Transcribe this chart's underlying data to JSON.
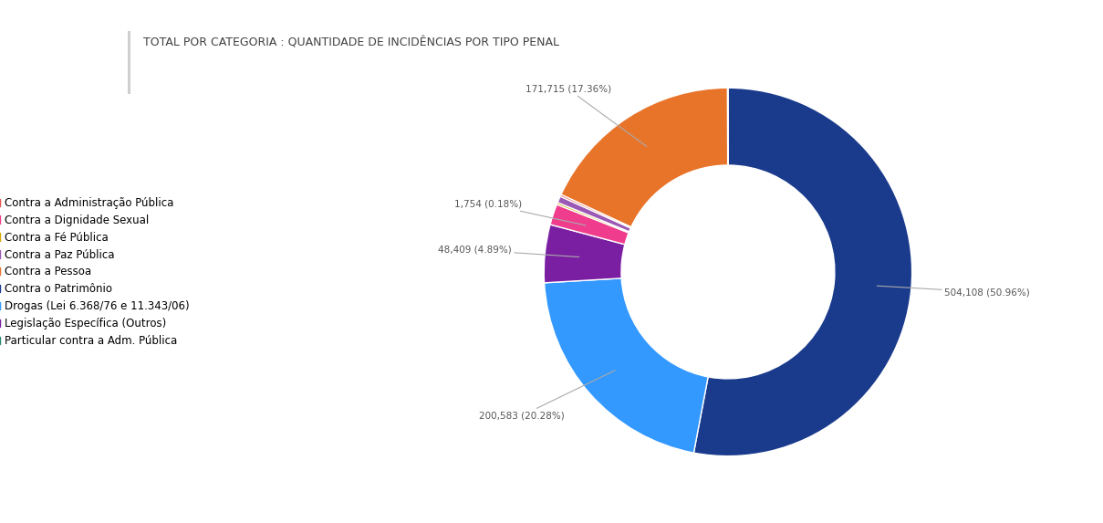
{
  "title": "TOTAL POR CATEGORIA : QUANTIDADE DE INCIDÊNCIAS POR TIPO PENAL",
  "categories": [
    "Contra a Administração Pública",
    "Contra a Dignidade Sexual",
    "Contra a Fé Pública",
    "Contra a Paz Pública",
    "Contra a Pessoa",
    "Contra o Patrimônio",
    "Drogas (Lei 6.368/76 e 11.343/06)",
    "Legislação Específica (Outros)",
    "Particular contra a Adm. Pública"
  ],
  "values": [
    504108,
    200583,
    48409,
    17390,
    1754,
    5500,
    1700,
    171715,
    336
  ],
  "colors": [
    "#1A3A8C",
    "#3399FF",
    "#7B1FA2",
    "#F03C8C",
    "#D4A800",
    "#9B59B6",
    "#E8524A",
    "#E8742A",
    "#2A8A72"
  ],
  "annotation_indices": [
    0,
    1,
    2,
    4,
    7
  ],
  "annotation_labels": [
    "504,108 (50.96%)",
    "200,583 (20.28%)",
    "48,409 (4.89%)",
    "1,754 (0.18%)",
    "171,715 (17.36%)"
  ],
  "legend_order": [
    6,
    3,
    5,
    8,
    6,
    0,
    1,
    2,
    7
  ],
  "background_color": "#FFFFFF",
  "title_color": "#404040",
  "title_fontsize": 9,
  "legend_fontsize": 8.5
}
